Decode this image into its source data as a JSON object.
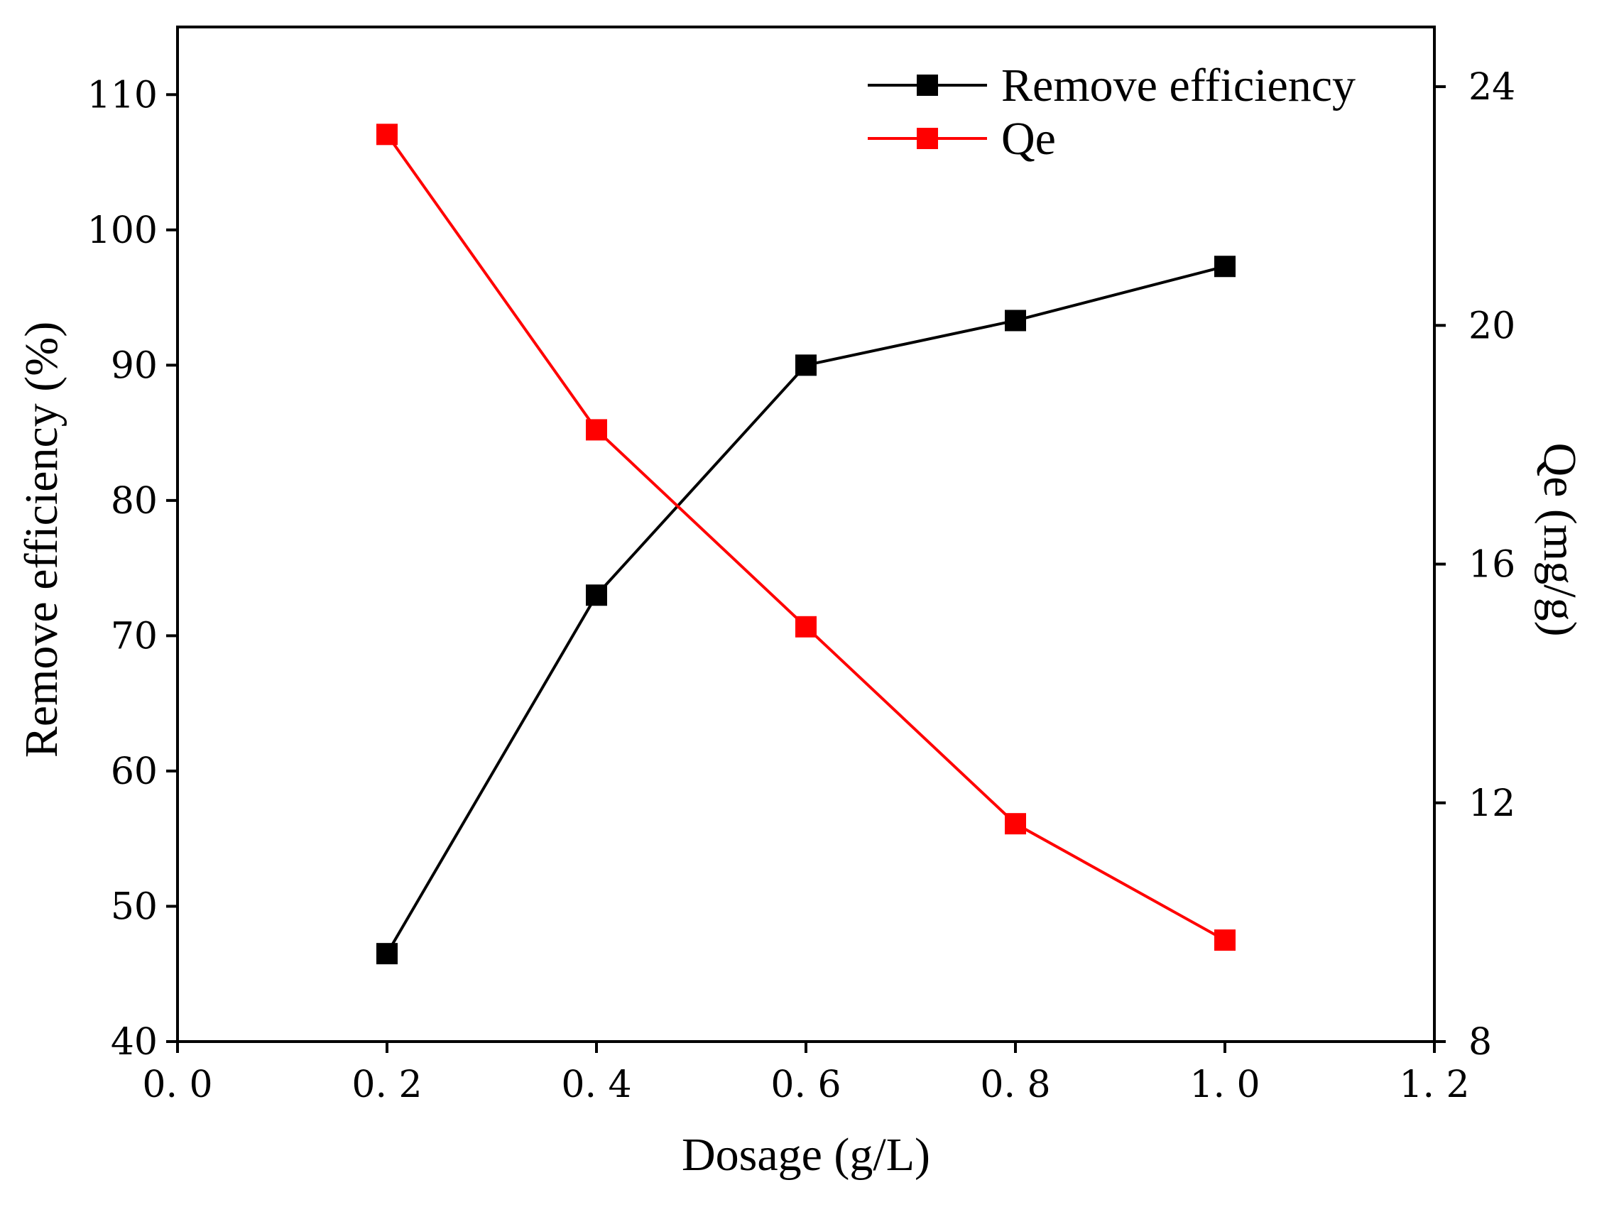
{
  "chart_data": {
    "type": "line",
    "xlabel": "Dosage (g/L)",
    "ylabel": "Remove efficiency (%)",
    "y2label": "Qe (mg/g)",
    "xlim": [
      0.0,
      1.2
    ],
    "ylim": [
      40,
      115
    ],
    "y2lim": [
      8,
      25
    ],
    "x_ticks": [
      "0. 0",
      "0. 2",
      "0. 4",
      "0. 6",
      "0. 8",
      "1. 0",
      "1. 2"
    ],
    "x_tick_values": [
      0.0,
      0.2,
      0.4,
      0.6,
      0.8,
      1.0,
      1.2
    ],
    "y_ticks": [
      "40",
      "50",
      "60",
      "70",
      "80",
      "90",
      "100",
      "110"
    ],
    "y_tick_values": [
      40,
      50,
      60,
      70,
      80,
      90,
      100,
      110
    ],
    "y2_ticks": [
      "8",
      "12",
      "16",
      "20",
      "24"
    ],
    "y2_tick_values": [
      8,
      12,
      16,
      20,
      24
    ],
    "grid": false,
    "legend_position": "top-right",
    "series": [
      {
        "name": "Remove efficiency",
        "axis": "left",
        "color": "#000000",
        "marker": "square",
        "x": [
          0.2,
          0.4,
          0.6,
          0.8,
          1.0
        ],
        "values": [
          46.5,
          73.0,
          90.0,
          93.3,
          97.3
        ]
      },
      {
        "name": "Qe",
        "axis": "right",
        "color": "#ff0000",
        "marker": "square",
        "x": [
          0.2,
          0.4,
          0.6,
          0.8,
          1.0
        ],
        "values": [
          23.2,
          18.25,
          14.95,
          11.65,
          9.7
        ]
      }
    ]
  }
}
